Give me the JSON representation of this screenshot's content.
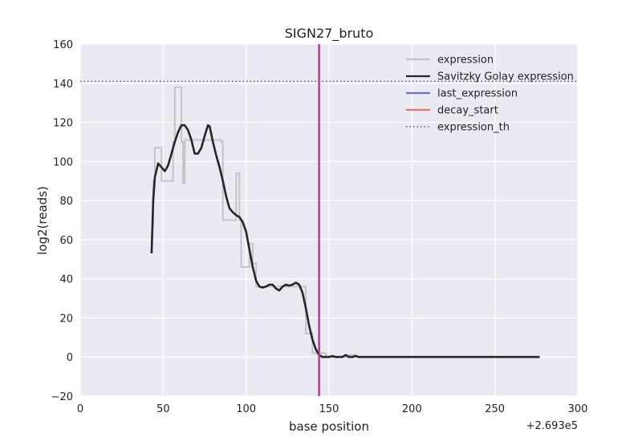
{
  "chart_data": {
    "type": "line",
    "title": "SIGN27_bruto",
    "xlabel": "base position",
    "ylabel": "log2(reads)",
    "x_offset_label": "+2.693e5",
    "xlim": [
      0,
      300
    ],
    "ylim": [
      -20,
      160
    ],
    "xticks": [
      0,
      50,
      100,
      150,
      200,
      250,
      300
    ],
    "yticks": [
      -20,
      0,
      20,
      40,
      60,
      80,
      100,
      120,
      140,
      160
    ],
    "xtick_labels": [
      "0",
      "50",
      "100",
      "150",
      "200",
      "250",
      "300"
    ],
    "ytick_labels": [
      "−20",
      "0",
      "20",
      "40",
      "60",
      "80",
      "100",
      "120",
      "140",
      "160"
    ],
    "grid": true,
    "legend_position": "top-right",
    "colors": {
      "background": "#eaeaf2",
      "grid": "#ffffff",
      "expression": "#c4c4c4",
      "savitzky_golay": "#262626",
      "last_expression": "#6c6cf0",
      "decay_start": "#f07070",
      "vertical_marker": "#b03a8a",
      "expression_th": "#444444"
    },
    "legend": [
      {
        "name": "expression",
        "style": "solid",
        "color": "#c4c4c4"
      },
      {
        "name": "Savitzky Golay expression",
        "style": "solid",
        "color": "#262626"
      },
      {
        "name": "last_expression",
        "style": "solid",
        "color": "#6c6cf0"
      },
      {
        "name": "decay_start",
        "style": "solid",
        "color": "#f07070"
      },
      {
        "name": "expression_th",
        "style": "dotted",
        "color": "#444444"
      }
    ],
    "expression_th": 141,
    "vertical_line_x": 144,
    "series": [
      {
        "name": "expression",
        "points": [
          [
            43,
            67
          ],
          [
            44,
            67
          ],
          [
            44,
            90
          ],
          [
            45,
            90
          ],
          [
            45,
            107
          ],
          [
            49,
            107
          ],
          [
            49,
            90
          ],
          [
            56,
            90
          ],
          [
            56,
            110
          ],
          [
            57,
            110
          ],
          [
            57,
            138
          ],
          [
            61,
            138
          ],
          [
            61,
            110
          ],
          [
            62,
            110
          ],
          [
            62,
            89
          ],
          [
            63,
            89
          ],
          [
            63,
            111
          ],
          [
            85,
            111
          ],
          [
            85,
            110
          ],
          [
            86,
            110
          ],
          [
            86,
            70
          ],
          [
            94,
            70
          ],
          [
            94,
            94
          ],
          [
            96,
            94
          ],
          [
            96,
            70
          ],
          [
            97,
            70
          ],
          [
            97,
            46
          ],
          [
            102,
            46
          ],
          [
            102,
            58
          ],
          [
            104,
            58
          ],
          [
            104,
            48
          ],
          [
            106,
            48
          ],
          [
            106,
            36
          ],
          [
            131,
            36
          ],
          [
            131,
            36
          ],
          [
            136,
            36
          ],
          [
            136,
            12
          ],
          [
            140,
            12
          ],
          [
            140,
            2
          ],
          [
            148,
            2
          ],
          [
            148,
            0
          ],
          [
            160,
            0
          ],
          [
            162,
            1
          ],
          [
            166,
            1
          ],
          [
            168,
            0
          ]
        ]
      },
      {
        "name": "Savitzky Golay expression",
        "points": [
          [
            43,
            53
          ],
          [
            44,
            80
          ],
          [
            45,
            92
          ],
          [
            47,
            99
          ],
          [
            49,
            97
          ],
          [
            51,
            95
          ],
          [
            53,
            98
          ],
          [
            55,
            104
          ],
          [
            57,
            110
          ],
          [
            59,
            115
          ],
          [
            61,
            118.5
          ],
          [
            63,
            118.5
          ],
          [
            65,
            116
          ],
          [
            67,
            111
          ],
          [
            69,
            104
          ],
          [
            71,
            104
          ],
          [
            73,
            107
          ],
          [
            75,
            113
          ],
          [
            77,
            118.5
          ],
          [
            78,
            118
          ],
          [
            80,
            110
          ],
          [
            82,
            103
          ],
          [
            84,
            97
          ],
          [
            86,
            90
          ],
          [
            88,
            82
          ],
          [
            90,
            76
          ],
          [
            92,
            74
          ],
          [
            94,
            72.5
          ],
          [
            96,
            71.5
          ],
          [
            98,
            69
          ],
          [
            100,
            64
          ],
          [
            102,
            55
          ],
          [
            104,
            46
          ],
          [
            106,
            39
          ],
          [
            108,
            36
          ],
          [
            110,
            35.5
          ],
          [
            112,
            36
          ],
          [
            114,
            37
          ],
          [
            116,
            37
          ],
          [
            118,
            35
          ],
          [
            120,
            34
          ],
          [
            122,
            36
          ],
          [
            124,
            37
          ],
          [
            126,
            36.5
          ],
          [
            128,
            37
          ],
          [
            130,
            38
          ],
          [
            132,
            37
          ],
          [
            134,
            33
          ],
          [
            136,
            25
          ],
          [
            138,
            16
          ],
          [
            140,
            9
          ],
          [
            142,
            4
          ],
          [
            144,
            1
          ],
          [
            146,
            0
          ],
          [
            148,
            0
          ],
          [
            150,
            0
          ],
          [
            152,
            0.5
          ],
          [
            154,
            0
          ],
          [
            156,
            0
          ],
          [
            158,
            0
          ],
          [
            160,
            1
          ],
          [
            162,
            0
          ],
          [
            164,
            0
          ],
          [
            166,
            0.5
          ],
          [
            168,
            0
          ],
          [
            200,
            0
          ],
          [
            250,
            0
          ],
          [
            277,
            0
          ]
        ]
      },
      {
        "name": "last_expression",
        "points": []
      },
      {
        "name": "decay_start",
        "points": []
      }
    ]
  }
}
